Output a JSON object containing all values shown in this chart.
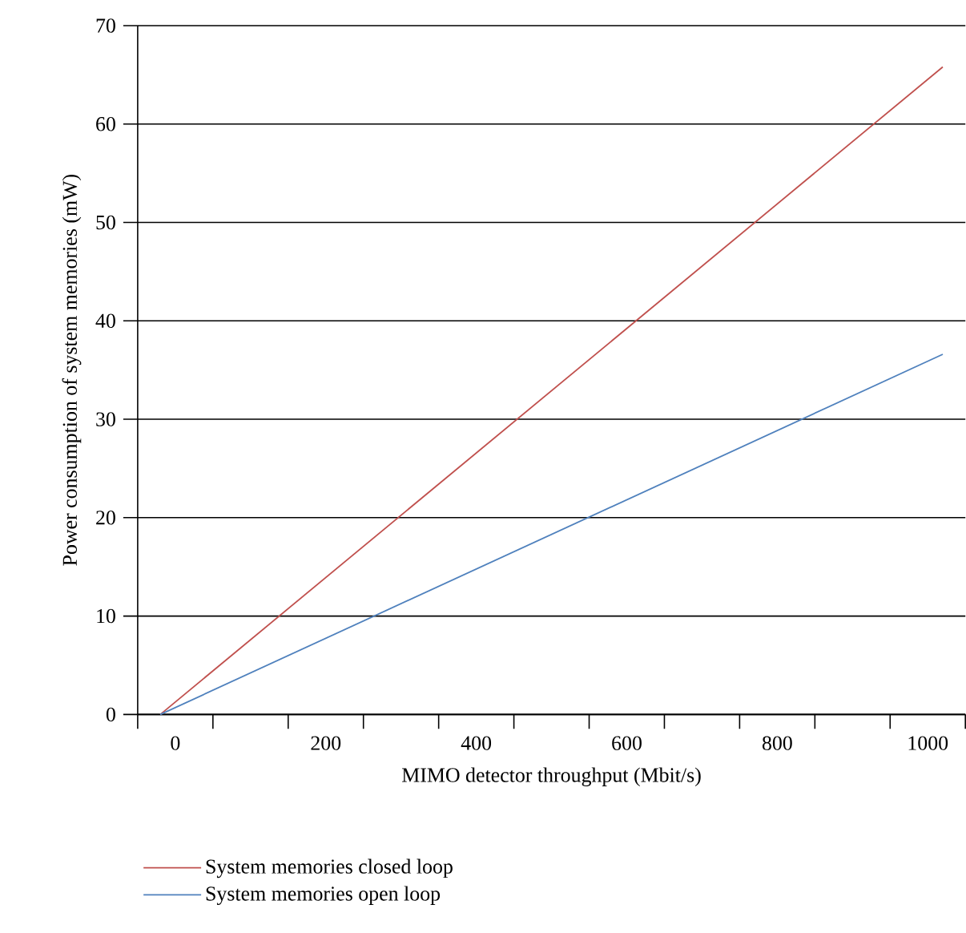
{
  "chart_data": {
    "type": "line",
    "xlabel": "MIMO detector throughput (Mbit/s)",
    "ylabel": "Power consumption of system memories (mW)",
    "xlim": [
      -50,
      1050
    ],
    "ylim": [
      0,
      70
    ],
    "xticks": [
      {
        "value": 0,
        "label": "0"
      },
      {
        "value": 200,
        "label": "200"
      },
      {
        "value": 400,
        "label": "400"
      },
      {
        "value": 600,
        "label": "600"
      },
      {
        "value": 800,
        "label": "800"
      },
      {
        "value": 1000,
        "label": "1000"
      },
      {
        "value": -50,
        "label": null
      },
      {
        "value": 50,
        "label": null
      },
      {
        "value": 150,
        "label": null
      },
      {
        "value": 250,
        "label": null
      },
      {
        "value": 350,
        "label": null
      },
      {
        "value": 450,
        "label": null
      },
      {
        "value": 550,
        "label": null
      },
      {
        "value": 650,
        "label": null
      },
      {
        "value": 750,
        "label": null
      },
      {
        "value": 850,
        "label": null
      },
      {
        "value": 950,
        "label": null
      },
      {
        "value": 1050,
        "label": null
      }
    ],
    "yticks": [
      0,
      10,
      20,
      30,
      40,
      50,
      60,
      70
    ],
    "x": [
      -20,
      1020
    ],
    "grid": "y",
    "legend": "bottom",
    "marker": "none",
    "line_style": "solid",
    "series": [
      {
        "name": "System memories closed loop",
        "color": "#c0504d",
        "values": [
          0,
          65.8
        ]
      },
      {
        "name": "System memories open loop",
        "color": "#4f81bd",
        "values": [
          0,
          36.6
        ]
      }
    ]
  }
}
